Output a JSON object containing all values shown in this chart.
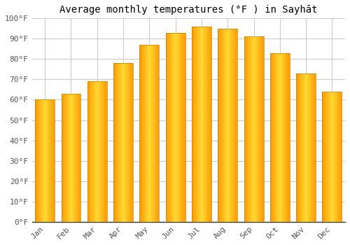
{
  "title": "Average monthly temperatures (°F ) in Sayhāt",
  "months": [
    "Jan",
    "Feb",
    "Mar",
    "Apr",
    "May",
    "Jun",
    "Jul",
    "Aug",
    "Sep",
    "Oct",
    "Nov",
    "Dec"
  ],
  "values": [
    60,
    63,
    69,
    78,
    87,
    93,
    96,
    95,
    91,
    83,
    73,
    64
  ],
  "bar_color_center": "#FFD966",
  "bar_color_edge": "#FFA500",
  "bar_edge_color": "#C8A000",
  "background_color": "#FFFFFF",
  "plot_bg_color": "#FFFFFF",
  "grid_color": "#CCCCCC",
  "ylim": [
    0,
    100
  ],
  "yticks": [
    0,
    10,
    20,
    30,
    40,
    50,
    60,
    70,
    80,
    90,
    100
  ],
  "title_fontsize": 10,
  "tick_fontsize": 8,
  "bar_width": 0.75
}
